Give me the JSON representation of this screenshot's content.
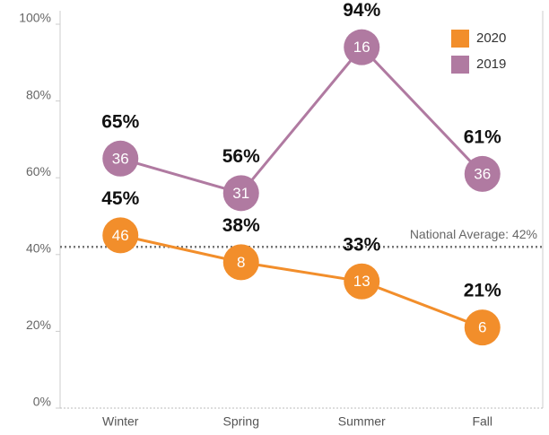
{
  "chart_data": {
    "type": "line",
    "categories": [
      "Winter",
      "Spring",
      "Summer",
      "Fall"
    ],
    "series": [
      {
        "name": "2020",
        "color": "#f28e2b",
        "values": [
          45,
          38,
          33,
          21
        ],
        "value_labels": [
          "45%",
          "38%",
          "33%",
          "21%"
        ],
        "counts": [
          46,
          8,
          13,
          6
        ]
      },
      {
        "name": "2019",
        "color": "#b07aa1",
        "values": [
          65,
          56,
          94,
          61
        ],
        "value_labels": [
          "65%",
          "56%",
          "94%",
          "61%"
        ],
        "counts": [
          36,
          31,
          16,
          36
        ]
      }
    ],
    "ylim": [
      0,
      100
    ],
    "yticks": [
      {
        "value": 0,
        "label": "0%"
      },
      {
        "value": 20,
        "label": "20%"
      },
      {
        "value": 40,
        "label": "40%"
      },
      {
        "value": 60,
        "label": "60%"
      },
      {
        "value": 80,
        "label": "80%"
      },
      {
        "value": 100,
        "label": "100%"
      }
    ],
    "reference_line": {
      "value": 42,
      "label": "National Average: 42%"
    },
    "legend": "top-right"
  }
}
